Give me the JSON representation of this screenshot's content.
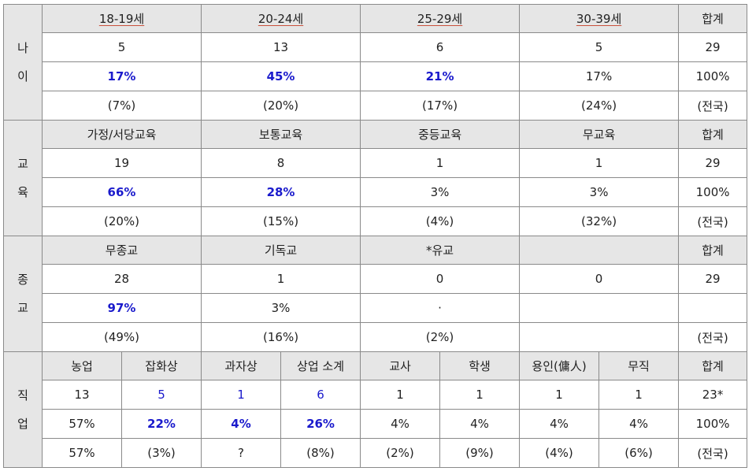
{
  "age": {
    "side": [
      "나",
      "이"
    ],
    "headers": [
      "18-19세",
      "20-24세",
      "25-29세",
      "30-39세",
      "합계"
    ],
    "counts": [
      "5",
      "13",
      "6",
      "5",
      "29"
    ],
    "percents": [
      "17%",
      "45%",
      "21%",
      "17%",
      "100%"
    ],
    "national": [
      "(7%)",
      "(20%)",
      "(17%)",
      "(24%)",
      "(전국)"
    ]
  },
  "education": {
    "side": [
      "교",
      "육"
    ],
    "headers": [
      "가정/서당교육",
      "보통교육",
      "중등교육",
      "무교육",
      "합계"
    ],
    "counts": [
      "19",
      "8",
      "1",
      "1",
      "29"
    ],
    "percents": [
      "66%",
      "28%",
      "3%",
      "3%",
      "100%"
    ],
    "national": [
      "(20%)",
      "(15%)",
      "(4%)",
      "(32%)",
      "(전국)"
    ]
  },
  "religion": {
    "side": [
      "종",
      "교"
    ],
    "headers": [
      "무종교",
      "기독교",
      "*유교",
      "",
      "합계"
    ],
    "counts": [
      "28",
      "1",
      "0",
      "0",
      "29"
    ],
    "percents": [
      "97%",
      "3%",
      "·",
      "",
      ""
    ],
    "national": [
      "(49%)",
      "(16%)",
      "(2%)",
      "",
      "(전국)"
    ]
  },
  "occupation": {
    "side": [
      "직",
      "업"
    ],
    "headers": [
      "농업",
      "잡화상",
      "과자상",
      "상업 소계",
      "교사",
      "학생",
      "용인(傭人)",
      "무직",
      "합계"
    ],
    "counts": [
      "13",
      "5",
      "1",
      "6",
      "1",
      "1",
      "1",
      "1",
      "23*"
    ],
    "percents": [
      "57%",
      "22%",
      "4%",
      "26%",
      "4%",
      "4%",
      "4%",
      "4%",
      "100%"
    ],
    "national": [
      "57%",
      "(3%)",
      "?",
      "(8%)",
      "(2%)",
      "(9%)",
      "(4%)",
      "(6%)",
      "(전국)"
    ]
  }
}
